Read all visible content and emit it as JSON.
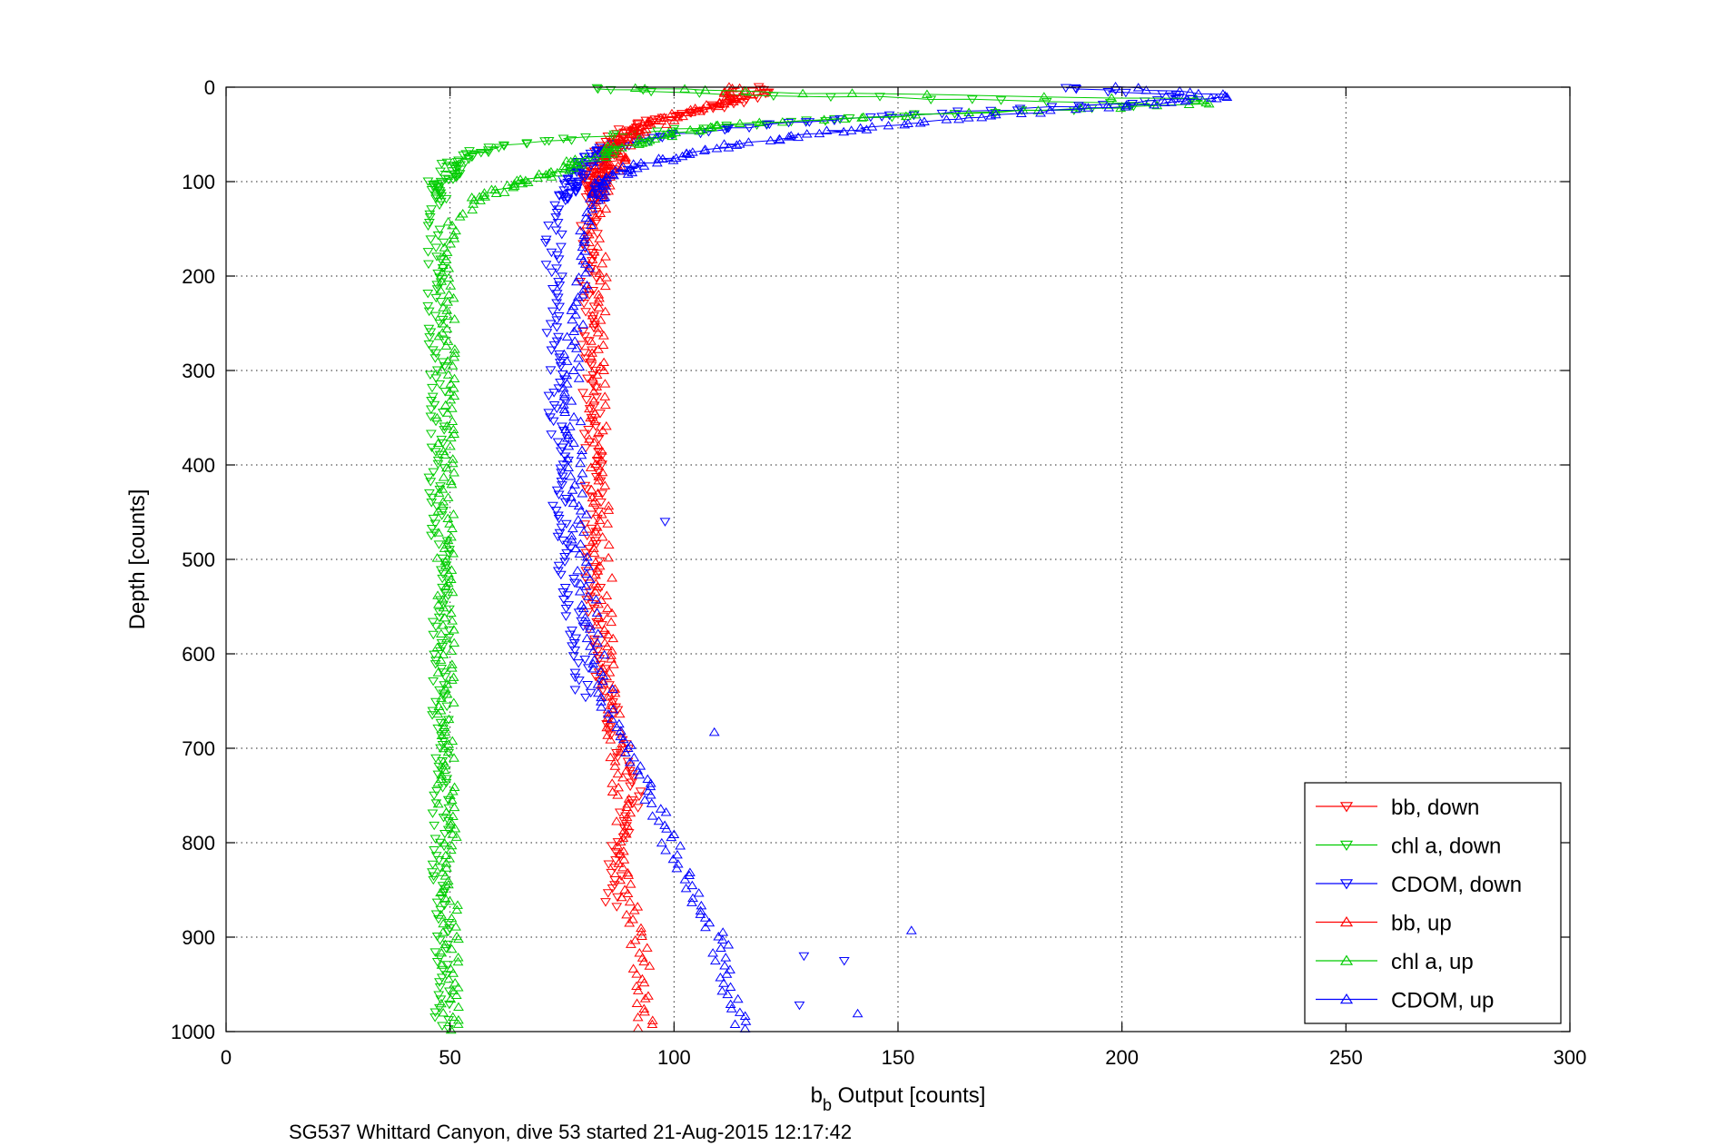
{
  "chart_data": {
    "type": "scatter",
    "title": "",
    "xlabel": "b_b Output [counts]",
    "xlabel_main": "b",
    "xlabel_sub": "b",
    "xlabel_rest": " Output [counts]",
    "ylabel": "Depth [counts]",
    "caption": "SG537 Whittard Canyon, dive 53 started 21-Aug-2015 12:17:42",
    "xlim": [
      0,
      300
    ],
    "ylim": [
      0,
      1000
    ],
    "y_reversed": true,
    "x_ticks": [
      0,
      50,
      100,
      150,
      200,
      250,
      300
    ],
    "y_ticks": [
      0,
      100,
      200,
      300,
      400,
      500,
      600,
      700,
      800,
      900,
      1000
    ],
    "x_tick_labels": [
      "0",
      "50",
      "100",
      "150",
      "200",
      "250",
      "300"
    ],
    "y_tick_labels": [
      "0",
      "100",
      "200",
      "300",
      "400",
      "500",
      "600",
      "700",
      "800",
      "900",
      "1000"
    ],
    "grid": true,
    "legend_position": "bottom-right",
    "series": [
      {
        "name": "bb, down",
        "color": "#ff0000",
        "marker": "triangle-down",
        "profile": [
          [
            0,
            118
          ],
          [
            5,
            120
          ],
          [
            10,
            117
          ],
          [
            20,
            110
          ],
          [
            30,
            100
          ],
          [
            40,
            92
          ],
          [
            55,
            87
          ],
          [
            70,
            85
          ],
          [
            90,
            82
          ],
          [
            110,
            82
          ],
          [
            150,
            81
          ],
          [
            250,
            81
          ],
          [
            400,
            82
          ],
          [
            500,
            82
          ],
          [
            600,
            83
          ],
          [
            650,
            85
          ],
          [
            700,
            88
          ],
          [
            750,
            91
          ],
          [
            800,
            88
          ],
          [
            850,
            86
          ],
          [
            870,
            86
          ]
        ]
      },
      {
        "name": "chl a, down",
        "color": "#00cc00",
        "marker": "triangle-down",
        "profile": [
          [
            0,
            82
          ],
          [
            5,
            95
          ],
          [
            8,
            120
          ],
          [
            12,
            155
          ],
          [
            15,
            180
          ],
          [
            18,
            205
          ],
          [
            22,
            200
          ],
          [
            28,
            160
          ],
          [
            35,
            130
          ],
          [
            45,
            100
          ],
          [
            55,
            75
          ],
          [
            65,
            58
          ],
          [
            75,
            52
          ],
          [
            85,
            50
          ],
          [
            95,
            49
          ],
          [
            100,
            48
          ],
          [
            150,
            47
          ],
          [
            200,
            47
          ],
          [
            300,
            47
          ],
          [
            400,
            47
          ],
          [
            500,
            48
          ],
          [
            600,
            48
          ],
          [
            700,
            48
          ],
          [
            800,
            48
          ],
          [
            900,
            48
          ],
          [
            1000,
            48
          ]
        ]
      },
      {
        "name": "CDOM, down",
        "color": "#0000ff",
        "marker": "triangle-down",
        "profile": [
          [
            0,
            185
          ],
          [
            5,
            200
          ],
          [
            10,
            215
          ],
          [
            15,
            210
          ],
          [
            20,
            190
          ],
          [
            30,
            150
          ],
          [
            40,
            120
          ],
          [
            50,
            100
          ],
          [
            60,
            88
          ],
          [
            75,
            82
          ],
          [
            90,
            79
          ],
          [
            100,
            77
          ],
          [
            150,
            73
          ],
          [
            250,
            73
          ],
          [
            350,
            74
          ],
          [
            450,
            75
          ],
          [
            500,
            75
          ],
          [
            550,
            77
          ],
          [
            600,
            79
          ],
          [
            650,
            80
          ]
        ]
      },
      {
        "name": "bb, up",
        "color": "#ff0000",
        "marker": "triangle-up",
        "profile": [
          [
            0,
            112
          ],
          [
            10,
            114
          ],
          [
            20,
            108
          ],
          [
            30,
            100
          ],
          [
            45,
            92
          ],
          [
            60,
            88
          ],
          [
            80,
            86
          ],
          [
            100,
            84
          ],
          [
            150,
            83
          ],
          [
            200,
            83
          ],
          [
            300,
            83
          ],
          [
            400,
            83
          ],
          [
            500,
            84
          ],
          [
            600,
            85
          ],
          [
            700,
            87
          ],
          [
            750,
            88
          ],
          [
            800,
            89
          ],
          [
            850,
            90
          ],
          [
            900,
            92
          ],
          [
            950,
            93
          ],
          [
            1000,
            94
          ]
        ]
      },
      {
        "name": "chl a, up",
        "color": "#00cc00",
        "marker": "triangle-up",
        "profile": [
          [
            0,
            90
          ],
          [
            5,
            115
          ],
          [
            8,
            150
          ],
          [
            10,
            190
          ],
          [
            12,
            215
          ],
          [
            15,
            220
          ],
          [
            18,
            215
          ],
          [
            22,
            195
          ],
          [
            30,
            150
          ],
          [
            40,
            110
          ],
          [
            60,
            90
          ],
          [
            80,
            78
          ],
          [
            95,
            70
          ],
          [
            100,
            66
          ],
          [
            120,
            55
          ],
          [
            150,
            50
          ],
          [
            300,
            49
          ],
          [
            500,
            49
          ],
          [
            700,
            49
          ],
          [
            900,
            50
          ],
          [
            1000,
            50
          ]
        ]
      },
      {
        "name": "CDOM, up",
        "color": "#0000ff",
        "marker": "triangle-up",
        "profile": [
          [
            0,
            200
          ],
          [
            5,
            215
          ],
          [
            8,
            225
          ],
          [
            12,
            220
          ],
          [
            20,
            200
          ],
          [
            30,
            170
          ],
          [
            45,
            140
          ],
          [
            60,
            115
          ],
          [
            75,
            100
          ],
          [
            85,
            90
          ],
          [
            100,
            84
          ],
          [
            150,
            80
          ],
          [
            300,
            77
          ],
          [
            500,
            79
          ],
          [
            600,
            83
          ],
          [
            650,
            85
          ],
          [
            700,
            90
          ],
          [
            750,
            95
          ],
          [
            800,
            99
          ],
          [
            850,
            104
          ],
          [
            900,
            110
          ],
          [
            950,
            112
          ],
          [
            1000,
            115
          ]
        ]
      }
    ],
    "outliers": [
      {
        "series": 2,
        "x": 98,
        "y": 460
      },
      {
        "series": 5,
        "x": 109,
        "y": 683
      },
      {
        "series": 5,
        "x": 153,
        "y": 893
      },
      {
        "series": 5,
        "x": 141,
        "y": 981
      },
      {
        "series": 2,
        "x": 138,
        "y": 925
      },
      {
        "series": 2,
        "x": 129,
        "y": 920
      },
      {
        "series": 2,
        "x": 128,
        "y": 972
      }
    ]
  }
}
